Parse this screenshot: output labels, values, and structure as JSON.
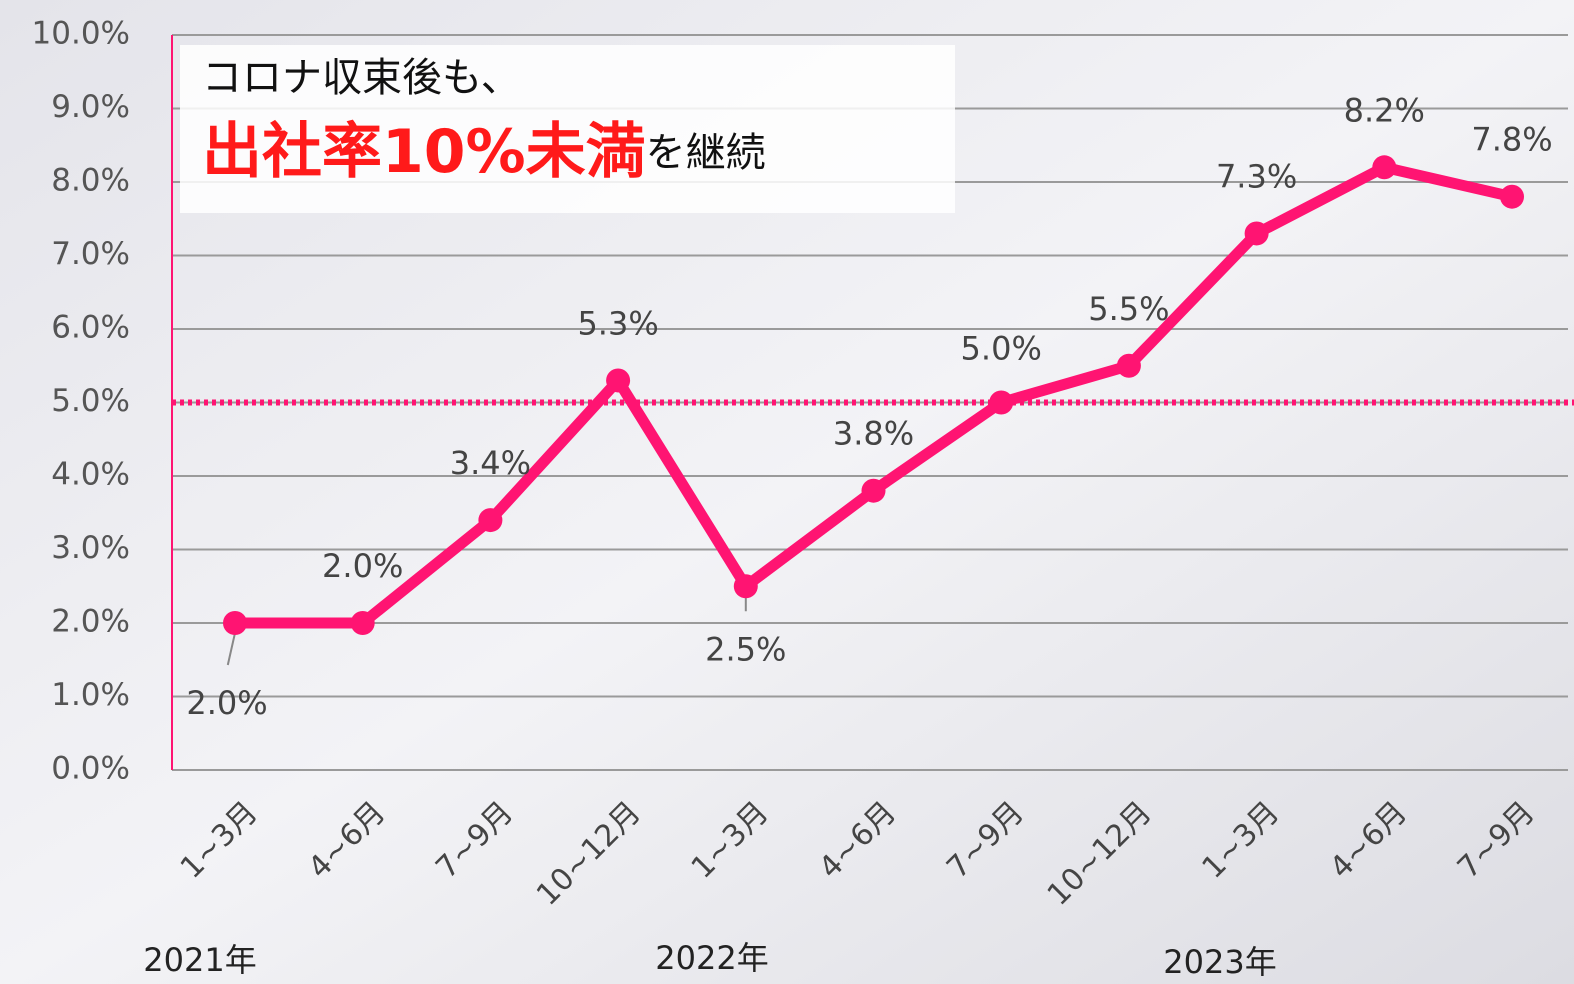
{
  "chart_data": {
    "type": "line",
    "title_lines": [
      "コロナ収束後も、",
      "出社率10%未満",
      "を継続"
    ],
    "categories": [
      "1~3月",
      "4~6月",
      "7~9月",
      "10~12月",
      "1~3月",
      "4~6月",
      "7~9月",
      "10~12月",
      "1~3月",
      "4~6月",
      "7~9月"
    ],
    "group_labels": [
      "2021年",
      "2022年",
      "2023年"
    ],
    "series": [
      {
        "name": "出社率",
        "color": "#ff1472",
        "values": [
          2.0,
          2.0,
          3.4,
          5.3,
          2.5,
          3.8,
          5.0,
          5.5,
          7.3,
          8.2,
          7.8
        ],
        "value_labels": [
          "2.0%",
          "2.0%",
          "3.4%",
          "5.3%",
          "2.5%",
          "3.8%",
          "5.0%",
          "5.5%",
          "7.3%",
          "8.2%",
          "7.8%"
        ]
      }
    ],
    "ylim": [
      0,
      10
    ],
    "yticks": [
      {
        "value": 0,
        "label": "0.0%"
      },
      {
        "value": 1,
        "label": "1.0%"
      },
      {
        "value": 2,
        "label": "2.0%"
      },
      {
        "value": 3,
        "label": "3.0%"
      },
      {
        "value": 4,
        "label": "4.0%"
      },
      {
        "value": 5,
        "label": "5.0%"
      },
      {
        "value": 6,
        "label": "6.0%"
      },
      {
        "value": 7,
        "label": "7.0%"
      },
      {
        "value": 8,
        "label": "8.0%"
      },
      {
        "value": 9,
        "label": "9.0%"
      },
      {
        "value": 10,
        "label": "10.0%"
      }
    ],
    "reference_line": 5.0,
    "grid": true
  }
}
